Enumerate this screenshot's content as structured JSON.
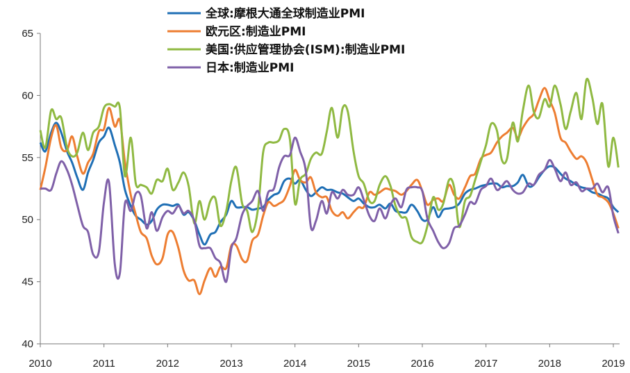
{
  "chart_data": {
    "type": "line",
    "title": "",
    "xlabel": "",
    "ylabel": "",
    "xlim": [
      2010,
      2019.2
    ],
    "ylim": [
      40,
      65
    ],
    "x_ticks": [
      "2010",
      "2011",
      "2012",
      "2013",
      "2014",
      "2015",
      "2016",
      "2017",
      "2018",
      "2019"
    ],
    "y_ticks": [
      "40",
      "45",
      "50",
      "55",
      "60",
      "65"
    ],
    "grid": false,
    "legend_position": "top-left",
    "series": [
      {
        "name": "全球:摩根大通全球制造业PMI",
        "color": "#1f6fb5",
        "x": [
          2010.0,
          2010.08,
          2010.17,
          2010.25,
          2010.33,
          2010.42,
          2010.5,
          2010.58,
          2010.67,
          2010.75,
          2010.83,
          2010.92,
          2011.0,
          2011.08,
          2011.17,
          2011.25,
          2011.33,
          2011.42,
          2011.5,
          2011.58,
          2011.67,
          2011.75,
          2011.83,
          2011.92,
          2012.0,
          2012.08,
          2012.17,
          2012.25,
          2012.33,
          2012.42,
          2012.5,
          2012.58,
          2012.67,
          2012.75,
          2012.83,
          2012.92,
          2013.0,
          2013.08,
          2013.17,
          2013.25,
          2013.33,
          2013.42,
          2013.5,
          2013.58,
          2013.67,
          2013.75,
          2013.83,
          2013.92,
          2014.0,
          2014.08,
          2014.17,
          2014.25,
          2014.33,
          2014.42,
          2014.5,
          2014.58,
          2014.67,
          2014.75,
          2014.83,
          2014.92,
          2015.0,
          2015.08,
          2015.17,
          2015.25,
          2015.33,
          2015.42,
          2015.5,
          2015.58,
          2015.67,
          2015.75,
          2015.83,
          2015.92,
          2016.0,
          2016.08,
          2016.17,
          2016.25,
          2016.33,
          2016.42,
          2016.5,
          2016.58,
          2016.67,
          2016.75,
          2016.83,
          2016.92,
          2017.0,
          2017.08,
          2017.17,
          2017.25,
          2017.33,
          2017.42,
          2017.5,
          2017.58,
          2017.67,
          2017.75,
          2017.83,
          2017.92,
          2018.0,
          2018.08,
          2018.17,
          2018.25,
          2018.33,
          2018.42,
          2018.5,
          2018.58,
          2018.67,
          2018.75,
          2018.83,
          2018.92,
          2019.0,
          2019.08
        ],
        "values": [
          56.2,
          55.5,
          57.0,
          57.8,
          57.0,
          55.5,
          54.6,
          53.4,
          52.4,
          53.8,
          54.8,
          56.2,
          56.7,
          57.4,
          56.0,
          54.6,
          52.4,
          51.1,
          50.3,
          50.0,
          49.6,
          49.9,
          50.8,
          51.2,
          51.2,
          51.1,
          51.2,
          50.4,
          50.6,
          49.9,
          48.8,
          48.0,
          48.8,
          49.0,
          49.8,
          50.4,
          51.5,
          51.0,
          51.0,
          51.0,
          50.8,
          50.9,
          51.0,
          51.6,
          52.0,
          52.2,
          53.1,
          53.3,
          52.9,
          53.2,
          52.4,
          51.9,
          52.2,
          52.6,
          52.4,
          52.4,
          52.2,
          52.1,
          51.8,
          51.5,
          51.7,
          51.3,
          51.0,
          51.0,
          51.2,
          50.9,
          51.3,
          50.7,
          50.6,
          50.6,
          51.2,
          50.7,
          50.0,
          50.0,
          51.0,
          50.2,
          50.8,
          50.9,
          51.0,
          51.3,
          52.1,
          52.4,
          52.5,
          52.7,
          52.8,
          52.9,
          52.9,
          52.6,
          52.7,
          52.7,
          53.0,
          53.6,
          52.7,
          52.8,
          53.4,
          54.0,
          54.3,
          54.2,
          53.7,
          53.3,
          53.1,
          52.8,
          52.6,
          52.5,
          52.2,
          52.1,
          51.9,
          51.7,
          51.0,
          50.6
        ]
      },
      {
        "name": "欧元区:制造业PMI",
        "color": "#ed7d31",
        "x": [
          2010.0,
          2010.08,
          2010.17,
          2010.25,
          2010.33,
          2010.42,
          2010.5,
          2010.58,
          2010.67,
          2010.75,
          2010.83,
          2010.92,
          2011.0,
          2011.08,
          2011.17,
          2011.25,
          2011.33,
          2011.42,
          2011.5,
          2011.58,
          2011.67,
          2011.75,
          2011.83,
          2011.92,
          2012.0,
          2012.08,
          2012.17,
          2012.25,
          2012.33,
          2012.42,
          2012.5,
          2012.58,
          2012.67,
          2012.75,
          2012.83,
          2012.92,
          2013.0,
          2013.08,
          2013.17,
          2013.25,
          2013.33,
          2013.42,
          2013.5,
          2013.58,
          2013.67,
          2013.75,
          2013.83,
          2013.92,
          2014.0,
          2014.08,
          2014.17,
          2014.25,
          2014.33,
          2014.42,
          2014.5,
          2014.58,
          2014.67,
          2014.75,
          2014.83,
          2014.92,
          2015.0,
          2015.08,
          2015.17,
          2015.25,
          2015.33,
          2015.42,
          2015.5,
          2015.58,
          2015.67,
          2015.75,
          2015.83,
          2015.92,
          2016.0,
          2016.08,
          2016.17,
          2016.25,
          2016.33,
          2016.42,
          2016.5,
          2016.58,
          2016.67,
          2016.75,
          2016.83,
          2016.92,
          2017.0,
          2017.08,
          2017.17,
          2017.25,
          2017.33,
          2017.42,
          2017.5,
          2017.58,
          2017.67,
          2017.75,
          2017.83,
          2017.92,
          2018.0,
          2018.08,
          2018.17,
          2018.25,
          2018.33,
          2018.42,
          2018.5,
          2018.58,
          2018.67,
          2018.75,
          2018.83,
          2018.92,
          2019.0,
          2019.08
        ],
        "values": [
          52.4,
          54.2,
          56.6,
          57.6,
          55.8,
          55.6,
          56.7,
          55.1,
          53.7,
          54.6,
          55.3,
          57.1,
          57.3,
          59.0,
          57.5,
          58.0,
          54.6,
          52.0,
          50.4,
          49.0,
          48.5,
          47.1,
          46.4,
          46.9,
          48.8,
          49.0,
          47.7,
          45.9,
          45.1,
          45.1,
          44.0,
          45.1,
          46.1,
          45.4,
          46.2,
          46.1,
          47.9,
          47.9,
          46.8,
          46.7,
          48.3,
          48.8,
          50.3,
          51.4,
          51.1,
          51.3,
          51.6,
          52.7,
          54.0,
          53.2,
          53.0,
          53.4,
          52.2,
          51.8,
          51.8,
          50.7,
          50.3,
          50.6,
          50.1,
          50.6,
          51.0,
          51.0,
          52.2,
          52.0,
          52.2,
          52.5,
          52.4,
          52.3,
          52.0,
          52.3,
          52.8,
          53.2,
          52.3,
          51.2,
          51.6,
          51.7,
          51.5,
          52.8,
          52.0,
          51.7,
          52.6,
          53.5,
          53.7,
          54.9,
          55.2,
          55.4,
          56.2,
          56.7,
          57.0,
          57.4,
          56.6,
          57.4,
          58.1,
          58.5,
          59.6,
          60.6,
          59.6,
          58.6,
          56.6,
          56.2,
          55.5,
          54.9,
          55.1,
          54.6,
          53.2,
          52.0,
          51.8,
          51.4,
          50.5,
          49.3
        ]
      },
      {
        "name": "美国:供应管理协会(ISM):制造业PMI",
        "color": "#8fb942",
        "x": [
          2010.0,
          2010.08,
          2010.17,
          2010.25,
          2010.33,
          2010.42,
          2010.5,
          2010.58,
          2010.67,
          2010.75,
          2010.83,
          2010.92,
          2011.0,
          2011.08,
          2011.17,
          2011.25,
          2011.33,
          2011.42,
          2011.5,
          2011.58,
          2011.67,
          2011.75,
          2011.83,
          2011.92,
          2012.0,
          2012.08,
          2012.17,
          2012.25,
          2012.33,
          2012.42,
          2012.5,
          2012.58,
          2012.67,
          2012.75,
          2012.83,
          2012.92,
          2013.0,
          2013.08,
          2013.17,
          2013.25,
          2013.33,
          2013.42,
          2013.5,
          2013.58,
          2013.67,
          2013.75,
          2013.83,
          2013.92,
          2014.0,
          2014.08,
          2014.17,
          2014.25,
          2014.33,
          2014.42,
          2014.5,
          2014.58,
          2014.67,
          2014.75,
          2014.83,
          2014.92,
          2015.0,
          2015.08,
          2015.17,
          2015.25,
          2015.33,
          2015.42,
          2015.5,
          2015.58,
          2015.67,
          2015.75,
          2015.83,
          2015.92,
          2016.0,
          2016.08,
          2016.17,
          2016.25,
          2016.33,
          2016.42,
          2016.5,
          2016.58,
          2016.67,
          2016.75,
          2016.83,
          2016.92,
          2017.0,
          2017.08,
          2017.17,
          2017.25,
          2017.33,
          2017.42,
          2017.5,
          2017.58,
          2017.67,
          2017.75,
          2017.83,
          2017.92,
          2018.0,
          2018.08,
          2018.17,
          2018.25,
          2018.33,
          2018.42,
          2018.5,
          2018.58,
          2018.67,
          2018.75,
          2018.83,
          2018.92,
          2019.0,
          2019.08
        ],
        "values": [
          57.2,
          55.8,
          58.8,
          58.1,
          58.2,
          55.8,
          55.1,
          55.4,
          57.0,
          55.6,
          57.0,
          57.5,
          59.0,
          59.3,
          59.1,
          59.0,
          53.5,
          56.6,
          52.9,
          52.8,
          52.6,
          52.1,
          53.2,
          53.1,
          54.1,
          52.4,
          53.0,
          53.8,
          52.7,
          49.7,
          51.5,
          50.0,
          51.5,
          51.7,
          49.5,
          50.7,
          53.1,
          54.2,
          51.3,
          50.7,
          49.0,
          50.9,
          55.4,
          56.2,
          56.2,
          56.4,
          57.3,
          56.5,
          51.3,
          53.2,
          53.7,
          54.9,
          55.4,
          55.3,
          57.1,
          59.0,
          56.6,
          59.0,
          58.7,
          55.5,
          53.5,
          52.9,
          51.5,
          51.5,
          52.8,
          53.5,
          52.7,
          51.1,
          50.2,
          50.1,
          48.6,
          48.2,
          48.2,
          49.5,
          51.8,
          50.8,
          51.3,
          53.2,
          52.6,
          49.4,
          51.5,
          51.9,
          53.2,
          54.7,
          56.0,
          57.7,
          57.2,
          54.8,
          54.9,
          57.8,
          56.3,
          58.8,
          60.8,
          58.7,
          58.2,
          59.7,
          59.1,
          60.8,
          59.3,
          57.3,
          58.7,
          60.2,
          58.1,
          61.3,
          59.8,
          57.7,
          59.3,
          54.3,
          56.6,
          54.2
        ]
      },
      {
        "name": "日本:制造业PMI",
        "color": "#7f60a8",
        "x": [
          2010.0,
          2010.08,
          2010.17,
          2010.25,
          2010.33,
          2010.42,
          2010.5,
          2010.58,
          2010.67,
          2010.75,
          2010.83,
          2010.92,
          2011.0,
          2011.08,
          2011.17,
          2011.25,
          2011.33,
          2011.42,
          2011.5,
          2011.58,
          2011.67,
          2011.75,
          2011.83,
          2011.92,
          2012.0,
          2012.08,
          2012.17,
          2012.25,
          2012.33,
          2012.42,
          2012.5,
          2012.58,
          2012.67,
          2012.75,
          2012.83,
          2012.92,
          2013.0,
          2013.08,
          2013.17,
          2013.25,
          2013.33,
          2013.42,
          2013.5,
          2013.58,
          2013.67,
          2013.75,
          2013.83,
          2013.92,
          2014.0,
          2014.08,
          2014.17,
          2014.25,
          2014.33,
          2014.42,
          2014.5,
          2014.58,
          2014.67,
          2014.75,
          2014.83,
          2014.92,
          2015.0,
          2015.08,
          2015.17,
          2015.25,
          2015.33,
          2015.42,
          2015.5,
          2015.58,
          2015.67,
          2015.75,
          2015.83,
          2015.92,
          2016.0,
          2016.08,
          2016.17,
          2016.25,
          2016.33,
          2016.42,
          2016.5,
          2016.58,
          2016.67,
          2016.75,
          2016.83,
          2016.92,
          2017.0,
          2017.08,
          2017.17,
          2017.25,
          2017.33,
          2017.42,
          2017.5,
          2017.58,
          2017.67,
          2017.75,
          2017.83,
          2017.92,
          2018.0,
          2018.08,
          2018.17,
          2018.25,
          2018.33,
          2018.42,
          2018.5,
          2018.58,
          2018.67,
          2018.75,
          2018.83,
          2018.92,
          2019.0,
          2019.08
        ],
        "values": [
          52.5,
          52.5,
          52.4,
          53.7,
          54.7,
          54.0,
          52.8,
          51.2,
          49.5,
          49.0,
          47.2,
          47.4,
          51.4,
          53.0,
          46.4,
          45.7,
          51.3,
          50.7,
          52.1,
          51.9,
          49.3,
          50.6,
          49.1,
          50.2,
          50.7,
          50.5,
          51.1,
          50.5,
          50.7,
          49.9,
          47.9,
          47.7,
          47.7,
          46.9,
          46.5,
          45.0,
          47.7,
          48.5,
          50.4,
          51.1,
          51.5,
          52.3,
          50.7,
          52.2,
          52.5,
          54.2,
          55.1,
          55.2,
          56.6,
          55.5,
          53.9,
          49.4,
          49.9,
          51.5,
          50.5,
          52.2,
          51.7,
          52.4,
          52.0,
          52.0,
          52.6,
          51.6,
          50.3,
          49.9,
          50.9,
          50.1,
          51.2,
          51.7,
          51.0,
          52.4,
          52.6,
          52.6,
          52.3,
          50.1,
          49.1,
          48.2,
          47.7,
          48.1,
          49.3,
          49.5,
          50.4,
          51.4,
          51.3,
          52.4,
          52.7,
          53.3,
          52.4,
          52.7,
          53.1,
          52.4,
          52.1,
          52.2,
          52.9,
          52.8,
          53.6,
          54.0,
          54.8,
          54.1,
          53.1,
          53.8,
          52.8,
          53.0,
          52.3,
          52.5,
          52.5,
          52.9,
          52.2,
          52.6,
          50.3,
          48.9
        ]
      }
    ]
  }
}
